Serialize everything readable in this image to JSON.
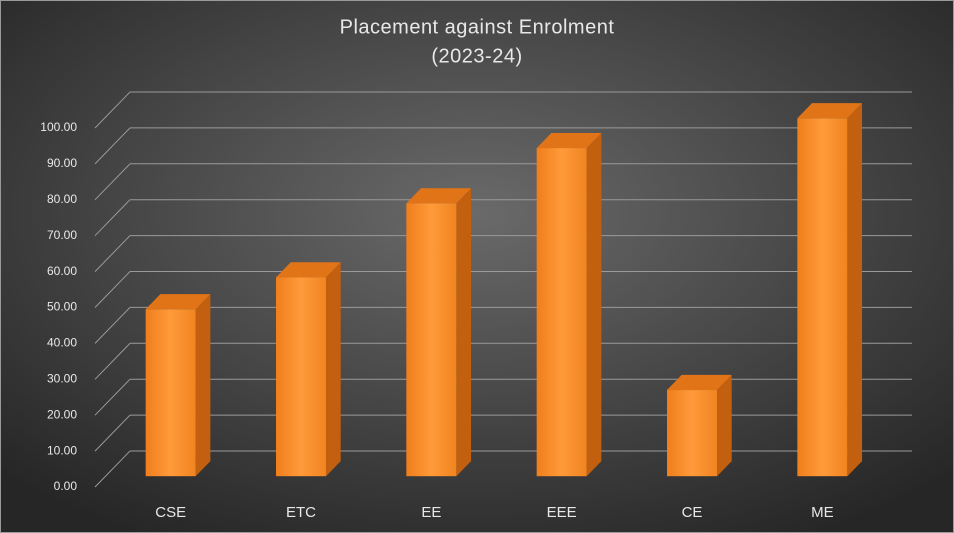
{
  "chart_data": {
    "type": "bar3d",
    "title": "Placement against  Enrolment",
    "subtitle": "(2023-24)",
    "categories": [
      "CSE",
      "ETC",
      "EE",
      "EEE",
      "CE",
      "ME"
    ],
    "values": [
      46.5,
      55.4,
      76,
      91.4,
      24,
      99.7
    ],
    "color": "#f58a26",
    "ylim": [
      0,
      100
    ],
    "yticks": [
      {
        "value": 0,
        "label": "0.00"
      },
      {
        "value": 10,
        "label": "10.00"
      },
      {
        "value": 20,
        "label": "20.00"
      },
      {
        "value": 30,
        "label": "30.00"
      },
      {
        "value": 40,
        "label": "40.00"
      },
      {
        "value": 50,
        "label": "50.00"
      },
      {
        "value": 60,
        "label": "60.00"
      },
      {
        "value": 70,
        "label": "70.00"
      },
      {
        "value": 80,
        "label": "80.00"
      },
      {
        "value": 90,
        "label": "90.00"
      },
      {
        "value": 100,
        "label": "100.00"
      }
    ],
    "grid": true
  }
}
